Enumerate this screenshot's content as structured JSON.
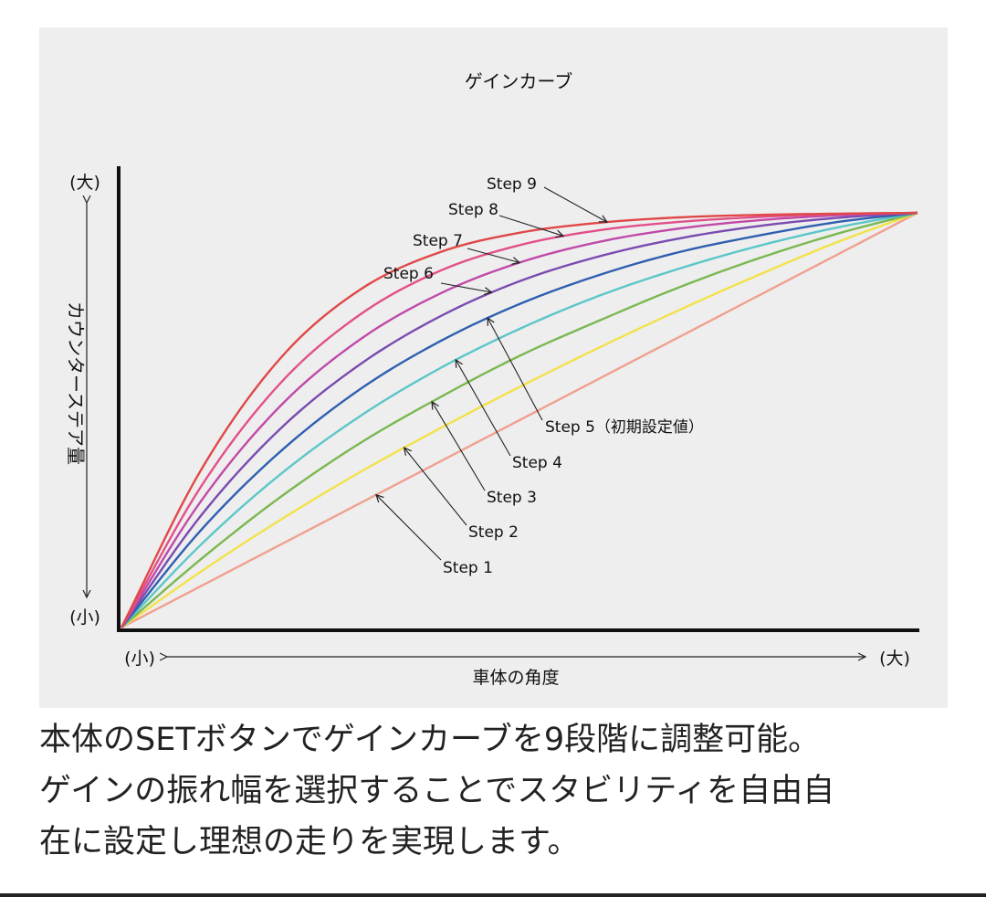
{
  "chart_data": {
    "type": "line",
    "title": "ゲインカーブ",
    "xlabel": "車体の角度",
    "ylabel": "カウンターステア量",
    "x_min_label": "(小)",
    "x_max_label": "(大)",
    "y_min_label": "(小)",
    "y_max_label": "(大)",
    "xlim": [
      0,
      1
    ],
    "ylim": [
      0,
      1
    ],
    "grid": false,
    "legend": "callout labels with arrows",
    "x": [
      0,
      0.1,
      0.2,
      0.3,
      0.4,
      0.5,
      0.6,
      0.7,
      0.8,
      0.9,
      1.0
    ],
    "series": [
      {
        "name": "Step 1",
        "color": "#f0a090",
        "values": [
          0,
          0.1,
          0.2,
          0.3,
          0.4,
          0.5,
          0.6,
          0.7,
          0.8,
          0.9,
          1.0
        ]
      },
      {
        "name": "Step 2",
        "color": "#f2e24a",
        "values": [
          0,
          0.135,
          0.26,
          0.375,
          0.48,
          0.58,
          0.675,
          0.765,
          0.85,
          0.93,
          1.0
        ]
      },
      {
        "name": "Step 3",
        "color": "#7ab850",
        "values": [
          0,
          0.165,
          0.315,
          0.445,
          0.555,
          0.655,
          0.74,
          0.82,
          0.89,
          0.95,
          1.0
        ]
      },
      {
        "name": "Step 4",
        "color": "#5cc6c8",
        "values": [
          0,
          0.2,
          0.37,
          0.51,
          0.625,
          0.72,
          0.8,
          0.865,
          0.92,
          0.965,
          1.0
        ]
      },
      {
        "name": "Step 5（初期設定値）",
        "color": "#2f5fb0",
        "values": [
          0,
          0.235,
          0.425,
          0.575,
          0.69,
          0.78,
          0.85,
          0.905,
          0.945,
          0.978,
          1.0
        ]
      },
      {
        "name": "Step 6",
        "color": "#7a4bb0",
        "values": [
          0,
          0.27,
          0.48,
          0.635,
          0.75,
          0.835,
          0.895,
          0.938,
          0.968,
          0.988,
          1.0
        ]
      },
      {
        "name": "Step 7",
        "color": "#c04aa8",
        "values": [
          0,
          0.305,
          0.535,
          0.695,
          0.805,
          0.88,
          0.93,
          0.962,
          0.982,
          0.994,
          1.0
        ]
      },
      {
        "name": "Step 8",
        "color": "#e2508a",
        "values": [
          0,
          0.34,
          0.59,
          0.755,
          0.86,
          0.922,
          0.958,
          0.978,
          0.99,
          0.997,
          1.0
        ]
      },
      {
        "name": "Step 9",
        "color": "#e04848",
        "values": [
          0,
          0.38,
          0.65,
          0.815,
          0.905,
          0.952,
          0.976,
          0.989,
          0.995,
          0.998,
          1.0
        ]
      }
    ]
  },
  "caption": {
    "line1": "本体のSETボタンでゲインカーブを9段階に調整可能。",
    "line2": "ゲインの振れ幅を選択することでスタビリティを自由自",
    "line3": "在に設定し理想の走りを実現します。"
  },
  "colors": {
    "panel_background": "#eeeeee",
    "axis": "#111111",
    "text": "#222222"
  }
}
